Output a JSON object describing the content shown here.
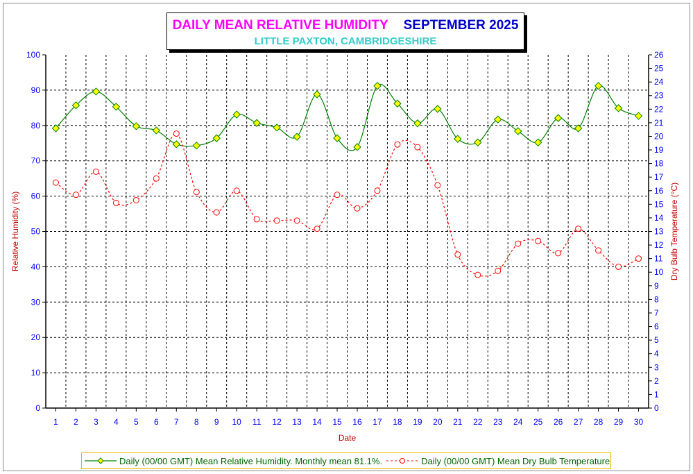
{
  "chart_data": {
    "type": "line",
    "title": "DAILY MEAN RELATIVE HUMIDITY",
    "title_period": "SEPTEMBER 2025",
    "subtitle": "LITTLE PAXTON, CAMBRIDGESHIRE",
    "xlabel": "Date",
    "ylabel": "Relative Humidity (%)",
    "y2label": "Dry Bulb Temperature (°C)",
    "x": [
      1,
      2,
      3,
      4,
      5,
      6,
      7,
      8,
      9,
      10,
      11,
      12,
      13,
      14,
      15,
      16,
      17,
      18,
      19,
      20,
      21,
      22,
      23,
      24,
      25,
      26,
      27,
      28,
      29,
      30
    ],
    "ylim": [
      0,
      100
    ],
    "y_ticks": [
      0,
      10,
      20,
      30,
      40,
      50,
      60,
      70,
      80,
      90,
      100
    ],
    "y2lim": [
      0,
      26
    ],
    "y2_ticks": [
      0,
      1,
      2,
      3,
      4,
      5,
      6,
      7,
      8,
      9,
      10,
      11,
      12,
      13,
      14,
      15,
      16,
      17,
      18,
      19,
      20,
      21,
      22,
      23,
      24,
      25,
      26
    ],
    "grid": true,
    "legend_position": "bottom",
    "series": [
      {
        "name": "Daily (00/00 GMT) Mean Relative Humidity. Monthly mean 81.1%.",
        "axis": "left",
        "color": "#008000",
        "marker_fill": "#ffff00",
        "values": [
          79.2,
          85.7,
          89.6,
          85.3,
          79.8,
          78.6,
          74.7,
          74.3,
          76.4,
          83.1,
          80.7,
          79.4,
          76.8,
          88.8,
          76.4,
          73.9,
          91.2,
          86.2,
          80.6,
          84.7,
          76.2,
          75.2,
          81.7,
          78.4,
          75.2,
          82.1,
          79.2,
          91.2,
          84.9,
          82.7
        ]
      },
      {
        "name": "Daily (00/00 GMT) Mean Dry Bulb Temperature",
        "axis": "right",
        "color": "#ff0000",
        "values": [
          16.6,
          15.7,
          17.4,
          15.1,
          15.3,
          16.9,
          20.2,
          15.9,
          14.4,
          16.0,
          13.9,
          13.8,
          13.8,
          13.2,
          15.7,
          14.7,
          16.0,
          19.4,
          19.2,
          16.4,
          11.3,
          9.8,
          10.1,
          12.1,
          12.3,
          11.4,
          13.2,
          11.6,
          10.4,
          11.0
        ]
      }
    ]
  },
  "colors": {
    "axis_label": "#c00000",
    "tick_label": "#0000ff"
  }
}
